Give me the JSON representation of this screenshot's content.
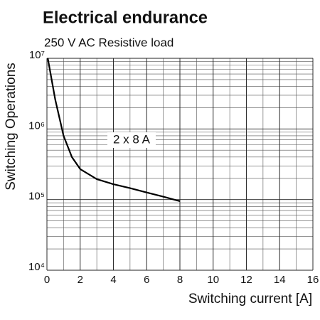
{
  "chart_data": {
    "type": "line",
    "title": "Electrical endurance",
    "subtitle": "250 V AC Resistive load",
    "x_label": "Switching current [A]",
    "y_label": "Switching Operations",
    "annotation": "2 x 8 A",
    "log_y": true,
    "grid": true,
    "xlim": [
      0,
      16
    ],
    "xticks": [
      0,
      2,
      4,
      6,
      8,
      10,
      12,
      14,
      16
    ],
    "ylim": [
      10000,
      10000000
    ],
    "yticks": [
      {
        "value": 10000,
        "label": "10⁴"
      },
      {
        "value": 100000,
        "label": "10⁵"
      },
      {
        "value": 1000000,
        "label": "10⁶"
      },
      {
        "value": 10000000,
        "label": "10⁷"
      }
    ],
    "series": [
      {
        "name": "2 x 8 A",
        "color": "#000000",
        "x": [
          0.05,
          0.5,
          1,
          1.5,
          2,
          3,
          4,
          5,
          6,
          7,
          8
        ],
        "values": [
          10000000,
          2600000,
          800000,
          400000,
          270000,
          195000,
          165000,
          145000,
          126000,
          110000,
          95000
        ]
      }
    ]
  }
}
